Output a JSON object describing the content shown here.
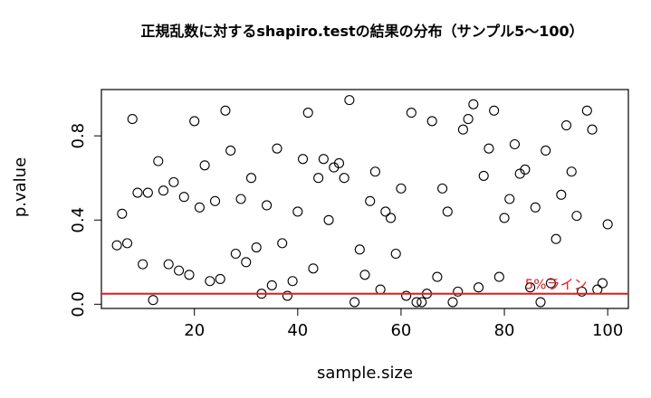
{
  "chart_data": {
    "type": "scatter",
    "title": "正規乱数に対するshapiro.testの結果の分布（サンプル5〜100）",
    "xlabel": "sample.size",
    "ylabel": "p.value",
    "xlim": [
      2,
      104
    ],
    "ylim": [
      -0.02,
      1.02
    ],
    "x_ticks": [
      20,
      40,
      60,
      80,
      100
    ],
    "y_ticks": [
      0.0,
      0.4,
      0.8
    ],
    "y_tick_labels": [
      "0.0",
      "0.4",
      "0.8"
    ],
    "x_tick_labels": [
      "20",
      "40",
      "60",
      "80",
      "100"
    ],
    "grid": false,
    "series": [
      {
        "marker": "open-circle",
        "color": "#000000",
        "points": [
          [
            5,
            0.28
          ],
          [
            6,
            0.43
          ],
          [
            7,
            0.29
          ],
          [
            8,
            0.88
          ],
          [
            9,
            0.53
          ],
          [
            10,
            0.19
          ],
          [
            11,
            0.53
          ],
          [
            12,
            0.02
          ],
          [
            13,
            0.68
          ],
          [
            14,
            0.54
          ],
          [
            15,
            0.19
          ],
          [
            16,
            0.58
          ],
          [
            17,
            0.16
          ],
          [
            18,
            0.51
          ],
          [
            19,
            0.14
          ],
          [
            20,
            0.87
          ],
          [
            21,
            0.46
          ],
          [
            22,
            0.66
          ],
          [
            23,
            0.11
          ],
          [
            24,
            0.49
          ],
          [
            25,
            0.12
          ],
          [
            26,
            0.92
          ],
          [
            27,
            0.73
          ],
          [
            28,
            0.24
          ],
          [
            29,
            0.5
          ],
          [
            30,
            0.2
          ],
          [
            31,
            0.6
          ],
          [
            32,
            0.27
          ],
          [
            33,
            0.05
          ],
          [
            34,
            0.47
          ],
          [
            35,
            0.09
          ],
          [
            36,
            0.74
          ],
          [
            37,
            0.29
          ],
          [
            38,
            0.04
          ],
          [
            39,
            0.11
          ],
          [
            40,
            0.44
          ],
          [
            41,
            0.69
          ],
          [
            42,
            0.91
          ],
          [
            43,
            0.17
          ],
          [
            44,
            0.6
          ],
          [
            45,
            0.69
          ],
          [
            46,
            0.4
          ],
          [
            47,
            0.65
          ],
          [
            48,
            0.67
          ],
          [
            49,
            0.6
          ],
          [
            50,
            0.97
          ],
          [
            51,
            0.01
          ],
          [
            52,
            0.26
          ],
          [
            53,
            0.14
          ],
          [
            54,
            0.49
          ],
          [
            55,
            0.63
          ],
          [
            56,
            0.07
          ],
          [
            57,
            0.44
          ],
          [
            58,
            0.41
          ],
          [
            59,
            0.24
          ],
          [
            60,
            0.55
          ],
          [
            61,
            0.04
          ],
          [
            62,
            0.91
          ],
          [
            63,
            0.01
          ],
          [
            64,
            0.01
          ],
          [
            65,
            0.05
          ],
          [
            66,
            0.87
          ],
          [
            67,
            0.13
          ],
          [
            68,
            0.55
          ],
          [
            69,
            0.44
          ],
          [
            70,
            0.01
          ],
          [
            71,
            0.06
          ],
          [
            72,
            0.83
          ],
          [
            73,
            0.88
          ],
          [
            74,
            0.95
          ],
          [
            75,
            0.08
          ],
          [
            76,
            0.61
          ],
          [
            77,
            0.74
          ],
          [
            78,
            0.92
          ],
          [
            79,
            0.13
          ],
          [
            80,
            0.41
          ],
          [
            81,
            0.5
          ],
          [
            82,
            0.76
          ],
          [
            83,
            0.62
          ],
          [
            84,
            0.64
          ],
          [
            85,
            0.08
          ],
          [
            86,
            0.46
          ],
          [
            87,
            0.01
          ],
          [
            88,
            0.73
          ],
          [
            89,
            0.1
          ],
          [
            90,
            0.31
          ],
          [
            91,
            0.52
          ],
          [
            92,
            0.85
          ],
          [
            93,
            0.63
          ],
          [
            94,
            0.42
          ],
          [
            95,
            0.06
          ],
          [
            96,
            0.92
          ],
          [
            97,
            0.83
          ],
          [
            98,
            0.07
          ],
          [
            99,
            0.1
          ],
          [
            100,
            0.38
          ]
        ]
      }
    ],
    "reference_line": {
      "y": 0.05,
      "color": "#e41a1c",
      "label": "5%ライン",
      "label_x": 90
    }
  }
}
